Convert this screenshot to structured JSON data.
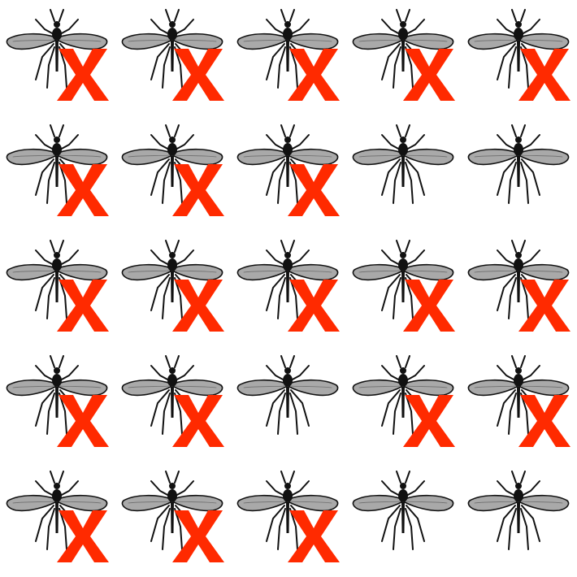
{
  "grid": {
    "rows": 5,
    "columns": 5,
    "icon": "mosquito-icon",
    "mark_icon": "red-x-mark-icon",
    "mark_color": "#ff2a00",
    "wing_color": "#a9a9a9",
    "body_color": "#111111",
    "crossed": [
      [
        true,
        true,
        true,
        true,
        true
      ],
      [
        true,
        true,
        true,
        false,
        false
      ],
      [
        true,
        true,
        true,
        true,
        true
      ],
      [
        true,
        true,
        false,
        true,
        true
      ],
      [
        true,
        true,
        true,
        false,
        false
      ]
    ]
  }
}
